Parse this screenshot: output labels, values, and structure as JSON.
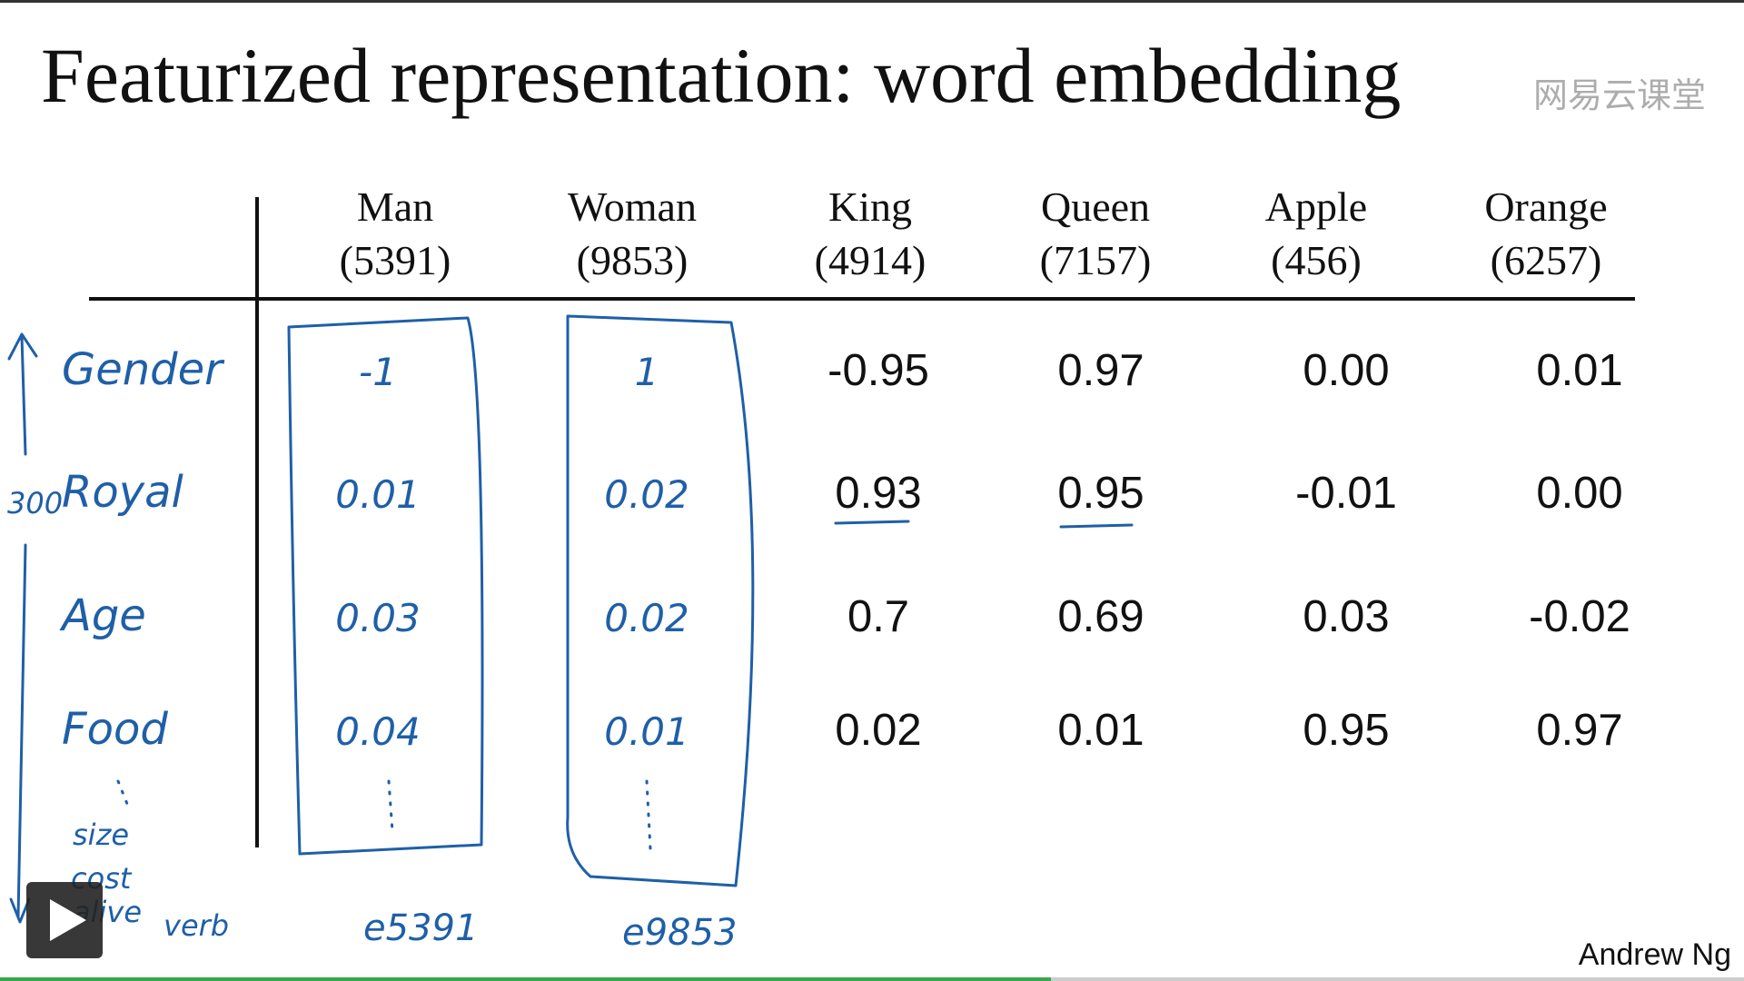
{
  "title": "Featurized representation: word embedding",
  "watermark": "网易云课堂",
  "table": {
    "columns": [
      {
        "name": "Man",
        "id": "(5391)"
      },
      {
        "name": "Woman",
        "id": "(9853)"
      },
      {
        "name": "King",
        "id": "(4914)"
      },
      {
        "name": "Queen",
        "id": "(7157)"
      },
      {
        "name": "Apple",
        "id": "(456)"
      },
      {
        "name": "Orange",
        "id": "(6257)"
      }
    ],
    "rows": [
      {
        "label": "Gender",
        "cells": [
          "-1",
          "1",
          "-0.95",
          "0.97",
          "0.00",
          "0.01"
        ]
      },
      {
        "label": "Royal",
        "cells": [
          "0.01",
          "0.02",
          "0.93",
          "0.95",
          "-0.01",
          "0.00"
        ]
      },
      {
        "label": "Age",
        "cells": [
          "0.03",
          "0.02",
          "0.7",
          "0.69",
          "0.03",
          "-0.02"
        ]
      },
      {
        "label": "Food",
        "cells": [
          "0.04",
          "0.01",
          "0.02",
          "0.01",
          "0.95",
          "0.97"
        ]
      }
    ]
  },
  "annotations": {
    "dimension": "300",
    "extra_features": [
      "size",
      "cost",
      "alive",
      "verb"
    ],
    "embeddings": [
      "e5391",
      "e9853"
    ]
  },
  "author": "Andrew Ng"
}
